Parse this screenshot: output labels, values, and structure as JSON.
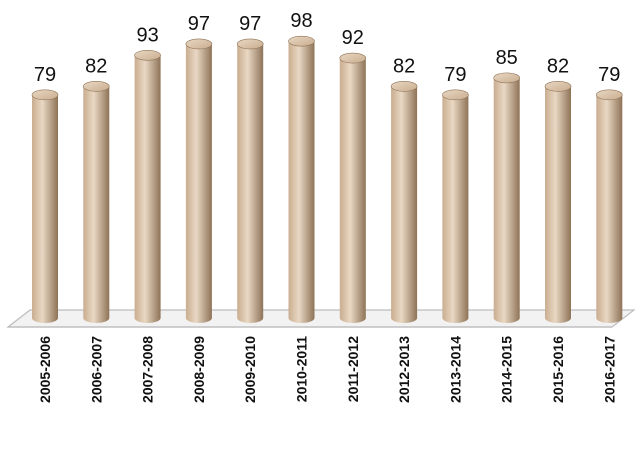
{
  "chart_data": {
    "type": "bar",
    "categories": [
      "2005-2006",
      "2006-2007",
      "2007-2008",
      "2008-2009",
      "2009-2010",
      "2010-2011",
      "2011-2012",
      "2012-2013",
      "2013-2014",
      "2014-2015",
      "2015-2016",
      "2016-2017"
    ],
    "values": [
      79,
      82,
      93,
      97,
      97,
      98,
      92,
      82,
      79,
      85,
      82,
      79
    ],
    "title": "",
    "xlabel": "",
    "ylabel": "",
    "bar_style": "3d-cylinder",
    "bar_color": "#c9ad8f",
    "bar_light_color": "#e9d8c4",
    "bar_dark_color": "#8e7357",
    "grid": false,
    "legend": "none",
    "data_labels": true
  }
}
